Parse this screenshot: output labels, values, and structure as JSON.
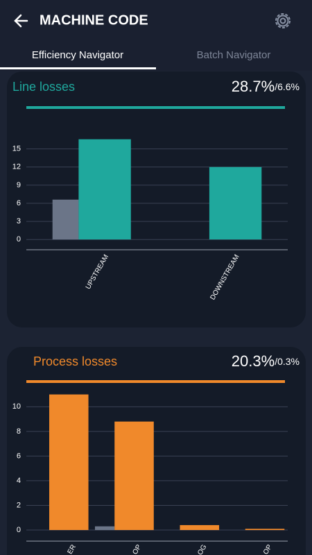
{
  "header": {
    "title": "MACHINE CODE"
  },
  "tabs": [
    "Efficiency Navigator",
    "Batch Navigator"
  ],
  "chart_data": [
    {
      "type": "bar",
      "title": "Line losses",
      "headline": "28.7%",
      "headline_sub": "/6.6%",
      "color": "#1fa89d",
      "categories": [
        "UPSTREAM",
        "DOWNSTREAM"
      ],
      "series": [
        {
          "color": "#6b7588",
          "values": [
            6.6,
            0
          ]
        },
        {
          "color": "#1fa89d",
          "values": [
            16.6,
            12.0
          ]
        }
      ],
      "ylim": [
        -1.7,
        17.6
      ],
      "yticks": [
        0,
        3,
        6,
        9,
        12,
        15
      ],
      "grid": true
    },
    {
      "type": "bar",
      "title": "Process losses",
      "headline": "20.3%",
      "headline_sub": "/0.3%",
      "color": "#f0892b",
      "categories": [
        "ER",
        "OP",
        "OG",
        "OP"
      ],
      "series": [
        {
          "color": "#6b7588",
          "values": [
            0,
            0.3,
            0,
            0
          ]
        },
        {
          "color": "#f0892b",
          "values": [
            11.0,
            8.8,
            0.4,
            0.1
          ]
        }
      ],
      "ylim": [
        -0.9,
        11.2
      ],
      "yticks": [
        0,
        2,
        4,
        6,
        8,
        10
      ],
      "grid": true
    }
  ]
}
